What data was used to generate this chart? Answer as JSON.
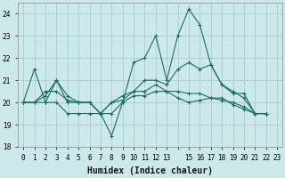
{
  "xlabel": "Humidex (Indice chaleur)",
  "background_color": "#cce8e8",
  "grid_color": "#aacccc",
  "line_color": "#1a6e5e",
  "xlim": [
    -0.5,
    23.5
  ],
  "ylim": [
    18,
    24.5
  ],
  "yticks": [
    18,
    19,
    20,
    21,
    22,
    23,
    24
  ],
  "series": [
    [
      20.0,
      21.5,
      20.0,
      21.0,
      20.0,
      20.0,
      20.0,
      19.5,
      18.5,
      20.0,
      21.8,
      22.0,
      23.0,
      21.0,
      23.0,
      24.2,
      23.5,
      21.7,
      20.8,
      20.4,
      20.4,
      19.5,
      19.5
    ],
    [
      20.0,
      20.0,
      20.0,
      20.0,
      19.5,
      19.5,
      19.5,
      19.5,
      19.5,
      20.0,
      20.3,
      20.3,
      20.5,
      20.5,
      20.2,
      20.0,
      20.1,
      20.2,
      20.2,
      19.9,
      19.7,
      19.5,
      19.5
    ],
    [
      20.0,
      20.0,
      20.3,
      21.0,
      20.3,
      20.0,
      20.0,
      19.5,
      20.0,
      20.3,
      20.5,
      21.0,
      21.0,
      20.8,
      21.5,
      21.8,
      21.5,
      21.7,
      20.8,
      20.5,
      20.2,
      19.5,
      19.5
    ],
    [
      20.0,
      20.0,
      20.5,
      20.5,
      20.1,
      20.0,
      20.0,
      19.5,
      20.0,
      20.1,
      20.5,
      20.5,
      20.8,
      20.5,
      20.5,
      20.4,
      20.4,
      20.2,
      20.1,
      20.0,
      19.8,
      19.5,
      19.5
    ]
  ],
  "marker": "+",
  "markersize": 3,
  "linewidth": 0.8,
  "tick_fontsize": 5.5,
  "label_fontsize": 7.0,
  "xtick_labels": [
    "0",
    "1",
    "2",
    "3",
    "4",
    "5",
    "6",
    "7",
    "8",
    "9",
    "10",
    "11",
    "12",
    "13",
    "15",
    "16",
    "17",
    "18",
    "19",
    "20",
    "21",
    "22",
    "23"
  ]
}
